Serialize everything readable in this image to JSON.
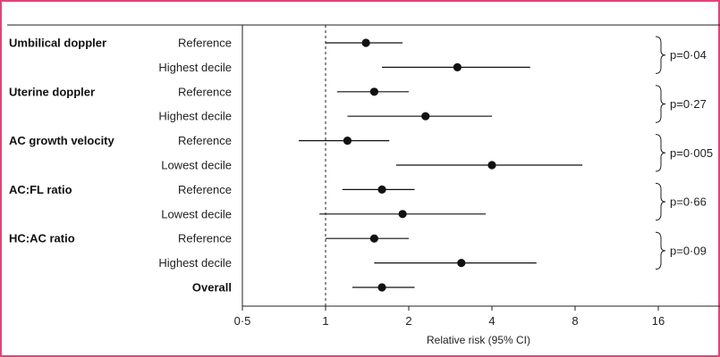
{
  "chart_data": {
    "type": "forest",
    "frame_color": "#e0457b",
    "scale": "log2",
    "xlim": [
      0.5,
      24
    ],
    "ticks": [
      {
        "value": 0.5,
        "label": "0·5"
      },
      {
        "value": 1,
        "label": "1"
      },
      {
        "value": 2,
        "label": "2"
      },
      {
        "value": 4,
        "label": "4"
      },
      {
        "value": 8,
        "label": "8"
      },
      {
        "value": 16,
        "label": "16"
      }
    ],
    "reference_line": 1,
    "xlabel": "Relative risk (95% CI)",
    "rows": [
      {
        "group": "Umbilical doppler",
        "label": "Reference",
        "estimate": 1.4,
        "lower": 1.0,
        "upper": 1.9
      },
      {
        "group": "",
        "label": "Highest decile",
        "estimate": 3.0,
        "lower": 1.6,
        "upper": 5.5
      },
      {
        "group": "Uterine doppler",
        "label": "Reference",
        "estimate": 1.5,
        "lower": 1.1,
        "upper": 2.0
      },
      {
        "group": "",
        "label": "Highest decile",
        "estimate": 2.3,
        "lower": 1.2,
        "upper": 4.0
      },
      {
        "group": "AC growth velocity",
        "label": "Reference",
        "estimate": 1.2,
        "lower": 0.8,
        "upper": 1.7
      },
      {
        "group": "",
        "label": "Lowest decile",
        "estimate": 4.0,
        "lower": 1.8,
        "upper": 8.5
      },
      {
        "group": "AC:FL ratio",
        "label": "Reference",
        "estimate": 1.6,
        "lower": 1.15,
        "upper": 2.1
      },
      {
        "group": "",
        "label": "Lowest decile",
        "estimate": 1.9,
        "lower": 0.95,
        "upper": 3.8
      },
      {
        "group": "HC:AC ratio",
        "label": "Reference",
        "estimate": 1.5,
        "lower": 1.0,
        "upper": 2.0
      },
      {
        "group": "",
        "label": "Highest decile",
        "estimate": 3.1,
        "lower": 1.5,
        "upper": 5.8
      },
      {
        "group": "",
        "label": "Overall",
        "estimate": 1.6,
        "lower": 1.25,
        "upper": 2.1,
        "bold": true
      }
    ],
    "p_values": [
      "p=0·04",
      "p=0·27",
      "p=0·005",
      "p=0·66",
      "p=0·09"
    ]
  }
}
